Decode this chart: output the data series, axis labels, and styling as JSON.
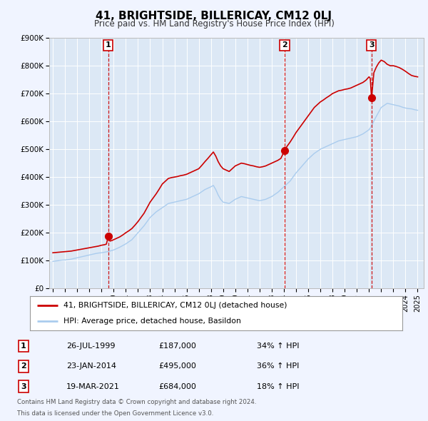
{
  "title": "41, BRIGHTSIDE, BILLERICAY, CM12 0LJ",
  "subtitle": "Price paid vs. HM Land Registry's House Price Index (HPI)",
  "background_color": "#f0f4ff",
  "plot_bg_color": "#dce8f5",
  "grid_color": "#ffffff",
  "red_line_color": "#cc0000",
  "blue_line_color": "#aaccee",
  "sale_marker_color": "#cc0000",
  "vline_color": "#cc0000",
  "ylim": [
    0,
    900000
  ],
  "yticks": [
    0,
    100000,
    200000,
    300000,
    400000,
    500000,
    600000,
    700000,
    800000,
    900000
  ],
  "ytick_labels": [
    "£0",
    "£100K",
    "£200K",
    "£300K",
    "£400K",
    "£500K",
    "£600K",
    "£700K",
    "£800K",
    "£900K"
  ],
  "xlim_start": 1994.7,
  "xlim_end": 2025.5,
  "sale1_x": 1999.56,
  "sale1_y": 187000,
  "sale1_label": "1",
  "sale2_x": 2014.06,
  "sale2_y": 495000,
  "sale2_label": "2",
  "sale3_x": 2021.21,
  "sale3_y": 684000,
  "sale3_label": "3",
  "legend_line1": "41, BRIGHTSIDE, BILLERICAY, CM12 0LJ (detached house)",
  "legend_line2": "HPI: Average price, detached house, Basildon",
  "table_rows": [
    [
      "1",
      "26-JUL-1999",
      "£187,000",
      "34% ↑ HPI"
    ],
    [
      "2",
      "23-JAN-2014",
      "£495,000",
      "36% ↑ HPI"
    ],
    [
      "3",
      "19-MAR-2021",
      "£684,000",
      "18% ↑ HPI"
    ]
  ],
  "footnote1": "Contains HM Land Registry data © Crown copyright and database right 2024.",
  "footnote2": "This data is licensed under the Open Government Licence v3.0.",
  "hpi_red_data": [
    [
      1995.0,
      128000
    ],
    [
      1995.25,
      129000
    ],
    [
      1995.5,
      130000
    ],
    [
      1995.75,
      131000
    ],
    [
      1996.0,
      132000
    ],
    [
      1996.25,
      133000
    ],
    [
      1996.5,
      134000
    ],
    [
      1996.75,
      136000
    ],
    [
      1997.0,
      138000
    ],
    [
      1997.25,
      140000
    ],
    [
      1997.5,
      142000
    ],
    [
      1997.75,
      144000
    ],
    [
      1998.0,
      146000
    ],
    [
      1998.25,
      148000
    ],
    [
      1998.5,
      150000
    ],
    [
      1998.75,
      152000
    ],
    [
      1999.0,
      155000
    ],
    [
      1999.25,
      157000
    ],
    [
      1999.4,
      159000
    ],
    [
      1999.56,
      187000
    ],
    [
      1999.7,
      170000
    ],
    [
      1999.85,
      172000
    ],
    [
      2000.0,
      175000
    ],
    [
      2000.25,
      180000
    ],
    [
      2000.5,
      185000
    ],
    [
      2000.75,
      192000
    ],
    [
      2001.0,
      200000
    ],
    [
      2001.25,
      207000
    ],
    [
      2001.5,
      215000
    ],
    [
      2001.75,
      227000
    ],
    [
      2002.0,
      240000
    ],
    [
      2002.25,
      255000
    ],
    [
      2002.5,
      270000
    ],
    [
      2002.75,
      290000
    ],
    [
      2003.0,
      310000
    ],
    [
      2003.25,
      325000
    ],
    [
      2003.5,
      340000
    ],
    [
      2003.75,
      357000
    ],
    [
      2004.0,
      375000
    ],
    [
      2004.25,
      385000
    ],
    [
      2004.5,
      395000
    ],
    [
      2004.75,
      398000
    ],
    [
      2005.0,
      400000
    ],
    [
      2005.25,
      402000
    ],
    [
      2005.5,
      405000
    ],
    [
      2005.75,
      407000
    ],
    [
      2006.0,
      410000
    ],
    [
      2006.25,
      415000
    ],
    [
      2006.5,
      420000
    ],
    [
      2006.75,
      425000
    ],
    [
      2007.0,
      430000
    ],
    [
      2007.25,
      442000
    ],
    [
      2007.5,
      455000
    ],
    [
      2007.75,
      467000
    ],
    [
      2008.0,
      480000
    ],
    [
      2008.2,
      490000
    ],
    [
      2008.4,
      475000
    ],
    [
      2008.6,
      455000
    ],
    [
      2008.8,
      440000
    ],
    [
      2009.0,
      430000
    ],
    [
      2009.25,
      425000
    ],
    [
      2009.5,
      420000
    ],
    [
      2009.75,
      430000
    ],
    [
      2010.0,
      440000
    ],
    [
      2010.25,
      445000
    ],
    [
      2010.5,
      450000
    ],
    [
      2010.75,
      448000
    ],
    [
      2011.0,
      445000
    ],
    [
      2011.25,
      442000
    ],
    [
      2011.5,
      440000
    ],
    [
      2011.75,
      437000
    ],
    [
      2012.0,
      435000
    ],
    [
      2012.25,
      437000
    ],
    [
      2012.5,
      440000
    ],
    [
      2012.75,
      445000
    ],
    [
      2013.0,
      450000
    ],
    [
      2013.25,
      455000
    ],
    [
      2013.5,
      460000
    ],
    [
      2013.75,
      467000
    ],
    [
      2014.0,
      490000
    ],
    [
      2014.06,
      495000
    ],
    [
      2014.25,
      510000
    ],
    [
      2014.5,
      525000
    ],
    [
      2014.75,
      542000
    ],
    [
      2015.0,
      560000
    ],
    [
      2015.25,
      575000
    ],
    [
      2015.5,
      590000
    ],
    [
      2015.75,
      605000
    ],
    [
      2016.0,
      620000
    ],
    [
      2016.25,
      635000
    ],
    [
      2016.5,
      650000
    ],
    [
      2016.75,
      660000
    ],
    [
      2017.0,
      670000
    ],
    [
      2017.25,
      677000
    ],
    [
      2017.5,
      685000
    ],
    [
      2017.75,
      692000
    ],
    [
      2018.0,
      700000
    ],
    [
      2018.25,
      705000
    ],
    [
      2018.5,
      710000
    ],
    [
      2018.75,
      712000
    ],
    [
      2019.0,
      715000
    ],
    [
      2019.25,
      717000
    ],
    [
      2019.5,
      720000
    ],
    [
      2019.75,
      725000
    ],
    [
      2020.0,
      730000
    ],
    [
      2020.25,
      735000
    ],
    [
      2020.5,
      740000
    ],
    [
      2020.75,
      748000
    ],
    [
      2021.0,
      760000
    ],
    [
      2021.1,
      755000
    ],
    [
      2021.21,
      684000
    ],
    [
      2021.4,
      775000
    ],
    [
      2021.6,
      795000
    ],
    [
      2021.8,
      810000
    ],
    [
      2022.0,
      820000
    ],
    [
      2022.25,
      815000
    ],
    [
      2022.5,
      805000
    ],
    [
      2022.75,
      800000
    ],
    [
      2023.0,
      800000
    ],
    [
      2023.25,
      797000
    ],
    [
      2023.5,
      793000
    ],
    [
      2023.75,
      787000
    ],
    [
      2024.0,
      780000
    ],
    [
      2024.25,
      772000
    ],
    [
      2024.5,
      765000
    ],
    [
      2024.75,
      762000
    ],
    [
      2025.0,
      760000
    ]
  ],
  "hpi_blue_data": [
    [
      1995.0,
      97000
    ],
    [
      1995.25,
      98500
    ],
    [
      1995.5,
      100000
    ],
    [
      1995.75,
      101500
    ],
    [
      1996.0,
      102000
    ],
    [
      1996.25,
      103500
    ],
    [
      1996.5,
      105000
    ],
    [
      1996.75,
      107500
    ],
    [
      1997.0,
      110000
    ],
    [
      1997.25,
      112500
    ],
    [
      1997.5,
      115000
    ],
    [
      1997.75,
      117500
    ],
    [
      1998.0,
      120000
    ],
    [
      1998.25,
      122500
    ],
    [
      1998.5,
      125000
    ],
    [
      1998.75,
      127000
    ],
    [
      1999.0,
      128000
    ],
    [
      1999.25,
      130000
    ],
    [
      1999.5,
      132000
    ],
    [
      1999.75,
      135000
    ],
    [
      2000.0,
      138000
    ],
    [
      2000.25,
      143000
    ],
    [
      2000.5,
      148000
    ],
    [
      2000.75,
      154000
    ],
    [
      2001.0,
      160000
    ],
    [
      2001.25,
      167500
    ],
    [
      2001.5,
      175000
    ],
    [
      2001.75,
      187500
    ],
    [
      2002.0,
      200000
    ],
    [
      2002.25,
      212500
    ],
    [
      2002.5,
      225000
    ],
    [
      2002.75,
      240000
    ],
    [
      2003.0,
      255000
    ],
    [
      2003.25,
      265000
    ],
    [
      2003.5,
      275000
    ],
    [
      2003.75,
      282500
    ],
    [
      2004.0,
      290000
    ],
    [
      2004.25,
      297500
    ],
    [
      2004.5,
      305000
    ],
    [
      2004.75,
      307500
    ],
    [
      2005.0,
      310000
    ],
    [
      2005.25,
      312500
    ],
    [
      2005.5,
      315000
    ],
    [
      2005.75,
      317500
    ],
    [
      2006.0,
      320000
    ],
    [
      2006.25,
      325000
    ],
    [
      2006.5,
      330000
    ],
    [
      2006.75,
      335000
    ],
    [
      2007.0,
      340000
    ],
    [
      2007.25,
      347500
    ],
    [
      2007.5,
      355000
    ],
    [
      2007.75,
      360000
    ],
    [
      2008.0,
      365000
    ],
    [
      2008.2,
      370000
    ],
    [
      2008.4,
      355000
    ],
    [
      2008.6,
      335000
    ],
    [
      2008.8,
      320000
    ],
    [
      2009.0,
      310000
    ],
    [
      2009.25,
      307500
    ],
    [
      2009.5,
      305000
    ],
    [
      2009.75,
      312500
    ],
    [
      2010.0,
      320000
    ],
    [
      2010.25,
      325000
    ],
    [
      2010.5,
      330000
    ],
    [
      2010.75,
      327500
    ],
    [
      2011.0,
      325000
    ],
    [
      2011.25,
      322500
    ],
    [
      2011.5,
      320000
    ],
    [
      2011.75,
      317500
    ],
    [
      2012.0,
      315000
    ],
    [
      2012.25,
      317500
    ],
    [
      2012.5,
      320000
    ],
    [
      2012.75,
      325000
    ],
    [
      2013.0,
      330000
    ],
    [
      2013.25,
      337500
    ],
    [
      2013.5,
      345000
    ],
    [
      2013.75,
      355000
    ],
    [
      2014.0,
      365000
    ],
    [
      2014.25,
      375000
    ],
    [
      2014.5,
      385000
    ],
    [
      2014.75,
      400000
    ],
    [
      2015.0,
      415000
    ],
    [
      2015.25,
      427500
    ],
    [
      2015.5,
      440000
    ],
    [
      2015.75,
      452500
    ],
    [
      2016.0,
      465000
    ],
    [
      2016.25,
      475000
    ],
    [
      2016.5,
      485000
    ],
    [
      2016.75,
      492500
    ],
    [
      2017.0,
      500000
    ],
    [
      2017.25,
      505000
    ],
    [
      2017.5,
      510000
    ],
    [
      2017.75,
      515000
    ],
    [
      2018.0,
      520000
    ],
    [
      2018.25,
      525000
    ],
    [
      2018.5,
      530000
    ],
    [
      2018.75,
      532500
    ],
    [
      2019.0,
      535000
    ],
    [
      2019.25,
      537500
    ],
    [
      2019.5,
      540000
    ],
    [
      2019.75,
      542500
    ],
    [
      2020.0,
      545000
    ],
    [
      2020.25,
      550000
    ],
    [
      2020.5,
      555000
    ],
    [
      2020.75,
      562500
    ],
    [
      2021.0,
      570000
    ],
    [
      2021.25,
      587500
    ],
    [
      2021.5,
      610000
    ],
    [
      2021.75,
      630000
    ],
    [
      2022.0,
      650000
    ],
    [
      2022.25,
      657500
    ],
    [
      2022.5,
      665000
    ],
    [
      2022.75,
      662500
    ],
    [
      2023.0,
      660000
    ],
    [
      2023.25,
      657500
    ],
    [
      2023.5,
      655000
    ],
    [
      2023.75,
      651000
    ],
    [
      2024.0,
      648000
    ],
    [
      2024.25,
      646000
    ],
    [
      2024.5,
      645000
    ],
    [
      2024.75,
      642000
    ],
    [
      2025.0,
      640000
    ]
  ]
}
